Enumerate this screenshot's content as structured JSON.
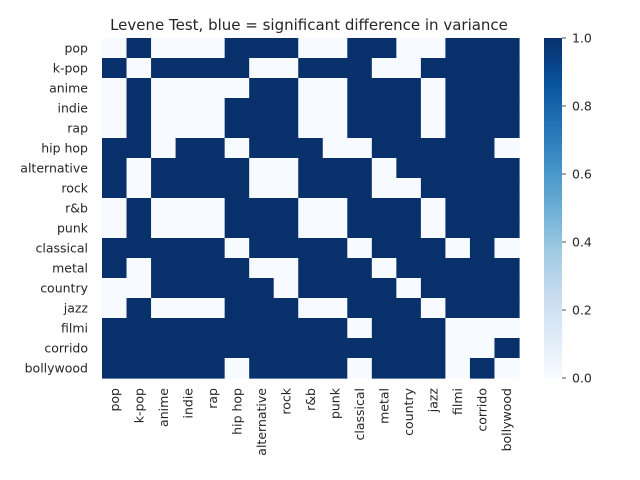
{
  "chart_data": {
    "type": "heatmap",
    "title": "Levene Test, blue = significant difference in variance",
    "xlabel": "",
    "ylabel": "",
    "labels": [
      "pop",
      "k-pop",
      "anime",
      "indie",
      "rap",
      "hip hop",
      "alternative",
      "rock",
      "r&b",
      "punk",
      "classical",
      "metal",
      "country",
      "jazz",
      "filmi",
      "corrido",
      "bollywood"
    ],
    "matrix": [
      [
        0,
        1,
        0,
        0,
        0,
        1,
        1,
        1,
        0,
        0,
        1,
        1,
        0,
        0,
        1,
        1,
        1
      ],
      [
        1,
        0,
        1,
        1,
        1,
        1,
        0,
        0,
        1,
        1,
        1,
        0,
        0,
        1,
        1,
        1,
        1
      ],
      [
        0,
        1,
        0,
        0,
        0,
        0,
        1,
        1,
        0,
        0,
        1,
        1,
        1,
        0,
        1,
        1,
        1
      ],
      [
        0,
        1,
        0,
        0,
        0,
        1,
        1,
        1,
        0,
        0,
        1,
        1,
        1,
        0,
        1,
        1,
        1
      ],
      [
        0,
        1,
        0,
        0,
        0,
        1,
        1,
        1,
        0,
        0,
        1,
        1,
        1,
        0,
        1,
        1,
        1
      ],
      [
        1,
        1,
        0,
        1,
        1,
        0,
        1,
        1,
        1,
        0,
        0,
        1,
        1,
        1,
        1,
        1,
        0
      ],
      [
        1,
        0,
        1,
        1,
        1,
        1,
        0,
        0,
        1,
        1,
        1,
        0,
        1,
        1,
        1,
        1,
        1
      ],
      [
        1,
        0,
        1,
        1,
        1,
        1,
        0,
        0,
        1,
        1,
        1,
        0,
        0,
        1,
        1,
        1,
        1
      ],
      [
        0,
        1,
        0,
        0,
        0,
        1,
        1,
        1,
        0,
        0,
        1,
        1,
        1,
        0,
        1,
        1,
        1
      ],
      [
        0,
        1,
        0,
        0,
        0,
        1,
        1,
        1,
        0,
        0,
        1,
        1,
        1,
        0,
        1,
        1,
        1
      ],
      [
        1,
        1,
        1,
        1,
        1,
        0,
        1,
        1,
        1,
        1,
        0,
        1,
        1,
        1,
        0,
        1,
        0
      ],
      [
        1,
        0,
        1,
        1,
        1,
        1,
        0,
        0,
        1,
        1,
        1,
        0,
        1,
        1,
        1,
        1,
        1
      ],
      [
        0,
        0,
        1,
        1,
        1,
        1,
        1,
        0,
        1,
        1,
        1,
        1,
        0,
        1,
        1,
        1,
        1
      ],
      [
        0,
        1,
        0,
        0,
        0,
        1,
        1,
        1,
        0,
        0,
        1,
        1,
        1,
        0,
        1,
        1,
        1
      ],
      [
        1,
        1,
        1,
        1,
        1,
        1,
        1,
        1,
        1,
        1,
        0,
        1,
        1,
        1,
        0,
        0,
        0
      ],
      [
        1,
        1,
        1,
        1,
        1,
        1,
        1,
        1,
        1,
        1,
        1,
        1,
        1,
        1,
        0,
        0,
        1
      ],
      [
        1,
        1,
        1,
        1,
        1,
        0,
        1,
        1,
        1,
        1,
        0,
        1,
        1,
        1,
        0,
        1,
        0
      ]
    ],
    "colorbar": {
      "min": 0.0,
      "max": 1.0,
      "ticks": [
        "0.0",
        "0.2",
        "0.4",
        "0.6",
        "0.8",
        "1.0"
      ]
    },
    "colors": {
      "low": "#f7fbff",
      "high": "#08306b"
    }
  }
}
